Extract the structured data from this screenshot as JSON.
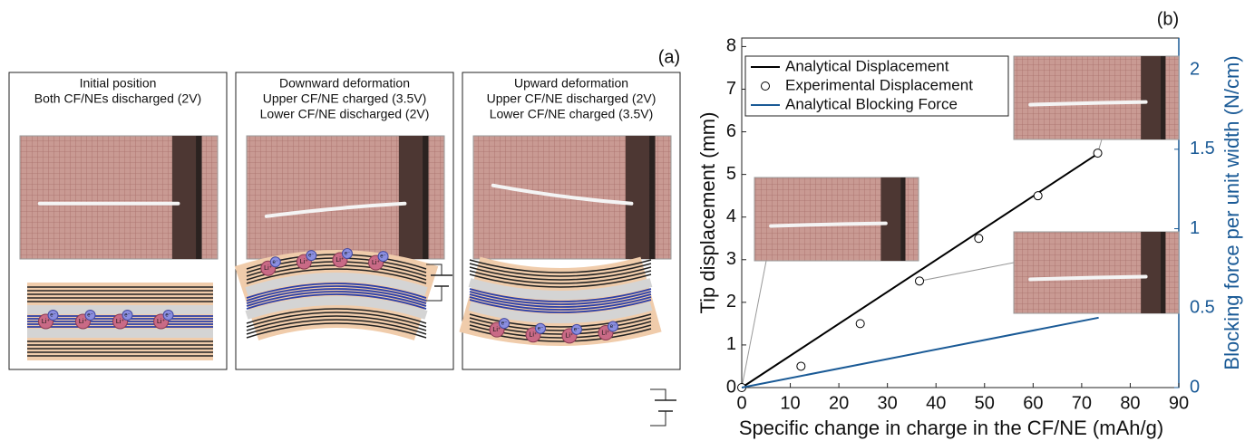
{
  "panel_a": {
    "label": "(a)",
    "ion_labels": {
      "lithium": "Li⁺",
      "electron": "e⁻"
    },
    "boxes": [
      {
        "lines": [
          "Initial position",
          "Both CF/NEs discharged (2V)"
        ]
      },
      {
        "lines": [
          "Downward deformation",
          "Upper CF/NE charged (3.5V)",
          "Lower CF/NE discharged (2V)"
        ]
      },
      {
        "lines": [
          "Upward deformation",
          "Upper CF/NE discharged (2V)",
          "Lower CF/NE charged (3.5V)"
        ]
      }
    ]
  },
  "chart_data": {
    "type": "line",
    "panel_label": "(b)",
    "x_label": "Specific change in charge in the CF/NE (mAh/g)",
    "y_label": "Tip displacement (mm)",
    "y2_label": "Blocking force per unit width (N/cm)",
    "xlim": [
      0,
      90
    ],
    "xticks": [
      0,
      10,
      20,
      30,
      40,
      50,
      60,
      70,
      80,
      90
    ],
    "ylim": [
      0,
      8.2
    ],
    "yticks": [
      0,
      1,
      2,
      3,
      4,
      5,
      6,
      7,
      8
    ],
    "y2lim": [
      0,
      2.2
    ],
    "y2ticks": [
      0,
      0.5,
      1,
      1.5,
      2
    ],
    "y2_color": "#1a5a96",
    "legend": "upper left",
    "series": [
      {
        "name": "Analytical Displacement",
        "type": "line",
        "color": "#000000",
        "x": [
          0,
          73.5
        ],
        "values": [
          0,
          5.5
        ]
      },
      {
        "name": "Experimental Displacement",
        "type": "scatter",
        "color": "#000000",
        "x": [
          0,
          12.2,
          24.4,
          36.6,
          48.8,
          61,
          73.3
        ],
        "values": [
          0,
          0.5,
          1.5,
          2.5,
          3.5,
          4.5,
          5.5
        ]
      },
      {
        "name": "Analytical Blocking Force",
        "type": "line",
        "axis": "y2",
        "color": "#1a5a96",
        "x": [
          0,
          73.5
        ],
        "values": [
          0,
          0.44
        ]
      }
    ]
  }
}
